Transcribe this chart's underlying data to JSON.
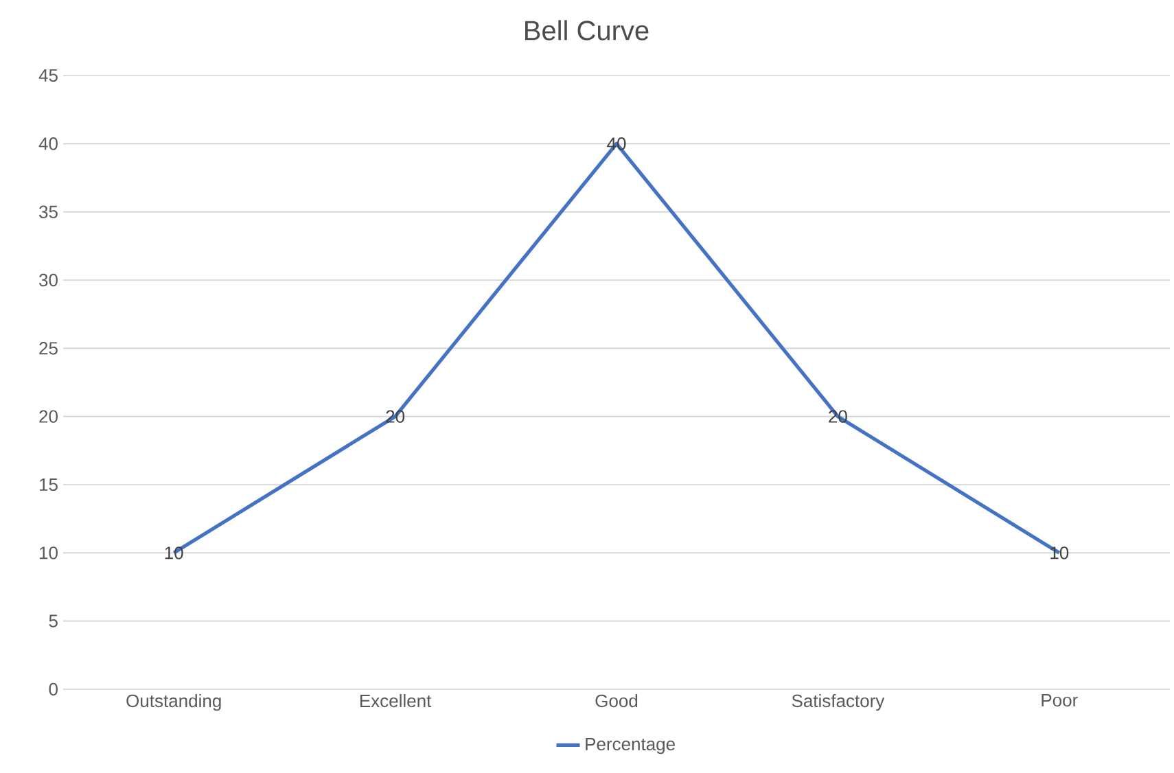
{
  "chart_data": {
    "type": "line",
    "title": "Bell Curve",
    "categories": [
      "Outstanding",
      "Excellent",
      "Good",
      "Satisfactory",
      "Poor"
    ],
    "series": [
      {
        "name": "Percentage",
        "color": "#4472c4",
        "values": [
          10,
          20,
          40,
          20,
          10
        ]
      }
    ],
    "ylim": [
      0,
      45
    ],
    "yticks": [
      0,
      5,
      10,
      15,
      20,
      25,
      30,
      35,
      40,
      45
    ],
    "grid": "y",
    "legend": "bottom",
    "data_labels": true,
    "marker": "none",
    "line_style": "solid"
  }
}
